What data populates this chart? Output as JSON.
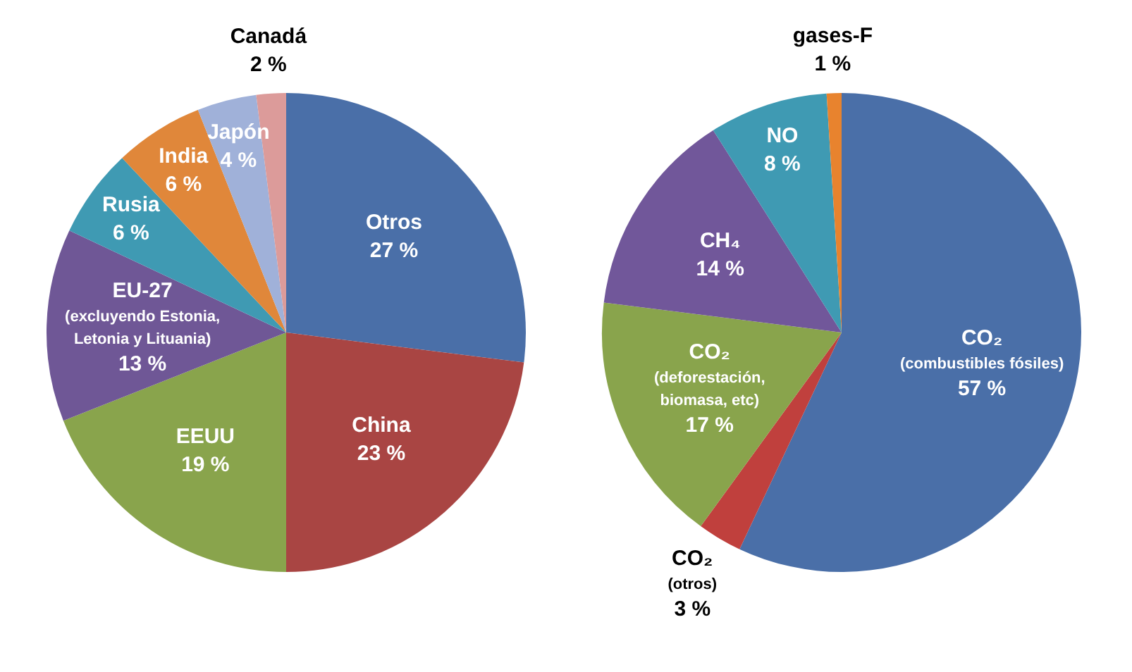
{
  "chart_data": [
    {
      "type": "pie",
      "categories": [
        "Otros",
        "China",
        "EEUU",
        "EU-27\n(excluyendo Estonia,\nLetonia y Lituania)",
        "Rusia",
        "India",
        "Japón",
        "Canadá"
      ],
      "values": [
        27,
        23,
        19,
        13,
        6,
        6,
        4,
        2
      ],
      "value_labels": [
        "27 %",
        "23 %",
        "19 %",
        "13 %",
        "6 %",
        "6 %",
        "4 %",
        "2 %"
      ],
      "colors": [
        "#4a6fa8",
        "#a94543",
        "#89a44c",
        "#6f5796",
        "#3f9ab3",
        "#e0873a",
        "#a0b1d9",
        "#dc9b9a"
      ],
      "legend": false
    },
    {
      "type": "pie",
      "categories": [
        "CO₂\n(combustibles fósiles)",
        "CO₂\n(otros)",
        "CO₂\n(deforestación,\nbiomasa, etc)",
        "CH₄",
        "NO",
        "gases-F"
      ],
      "values": [
        57,
        3,
        17,
        14,
        8,
        1
      ],
      "value_labels": [
        "57 %",
        "3 %",
        "17 %",
        "14 %",
        "8 %",
        "1 %"
      ],
      "colors": [
        "#4a6fa8",
        "#c0403d",
        "#89a44c",
        "#71579a",
        "#3f9ab3",
        "#e8832e"
      ],
      "legend": false
    }
  ]
}
